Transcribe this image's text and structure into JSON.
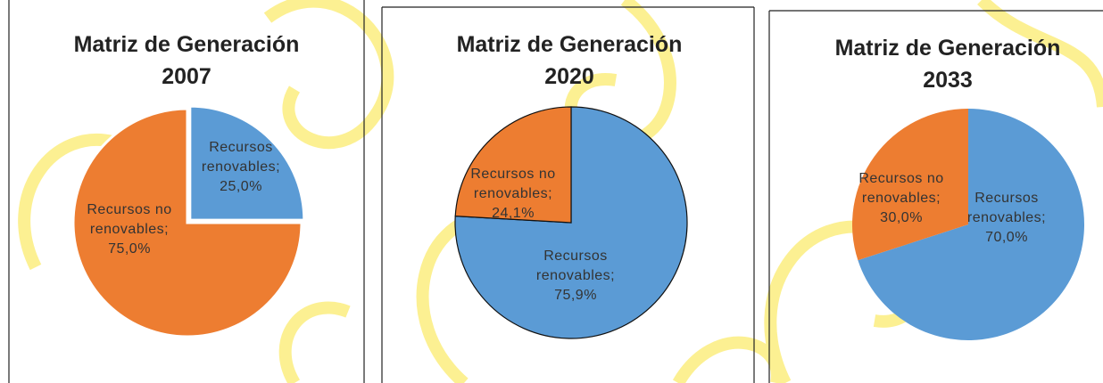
{
  "chart_data": [
    {
      "type": "pie",
      "title": "Matriz de Generación 2007",
      "values": [
        25.0,
        75.0
      ],
      "value_labels": [
        "Recursos renovables; 25,0%",
        "Recursos no renovables; 75,0%"
      ],
      "colors": [
        "#5b9bd5",
        "#ed7d31"
      ]
    },
    {
      "type": "pie",
      "title": "Matriz de Generación 2020",
      "values": [
        75.9,
        24.1
      ],
      "value_labels": [
        "Recursos renovables; 75,9%",
        "Recursos no renovables; 24,1%"
      ],
      "colors": [
        "#5b9bd5",
        "#ed7d31"
      ]
    },
    {
      "type": "pie",
      "title": "Matriz de Generación 2033",
      "values": [
        70.0,
        30.0
      ],
      "value_labels": [
        "Recursos renovables; 70,0%",
        "Recursos no renovables; 30,0%"
      ],
      "colors": [
        "#5b9bd5",
        "#ed7d31"
      ]
    }
  ]
}
